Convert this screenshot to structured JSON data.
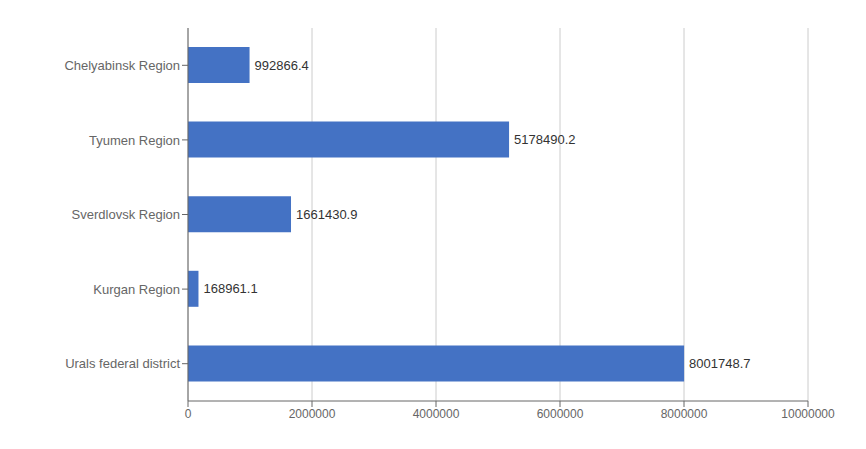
{
  "chart_data": {
    "type": "bar",
    "orientation": "horizontal",
    "categories": [
      "Urals federal district",
      "Kurgan Region",
      "Sverdlovsk Region",
      "Tyumen Region",
      "Chelyabinsk Region"
    ],
    "values": [
      8001748.7,
      168961.1,
      1661430.9,
      5178490.2,
      992866.4
    ],
    "color": "#4472c4",
    "xlim": [
      0,
      10000000
    ],
    "xticks": [
      0,
      2000000,
      4000000,
      6000000,
      8000000,
      10000000
    ],
    "grid": true,
    "data_labels": true
  }
}
